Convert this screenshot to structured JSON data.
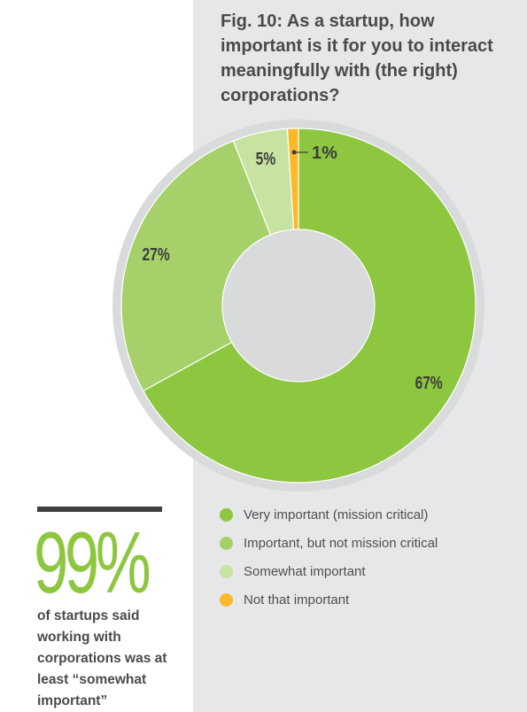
{
  "chart_data": {
    "type": "pie",
    "title": "Fig. 10: As a startup, how important is it for you to interact meaningfully with (the right) corporations?",
    "categories": [
      "Very important (mission critical)",
      "Important, but not mission critical",
      "Somewhat important",
      "Not that important"
    ],
    "values": [
      67,
      27,
      5,
      1
    ],
    "value_labels": [
      "67%",
      "27%",
      "5%",
      "1%"
    ],
    "colors": [
      "#8dc63f",
      "#a6d16a",
      "#c7e3a1",
      "#fbb829"
    ],
    "donut": true,
    "legend_position": "bottom"
  },
  "highlight": {
    "value": "99%",
    "text": "of startups said working with corporations was at least “somewhat important”"
  }
}
